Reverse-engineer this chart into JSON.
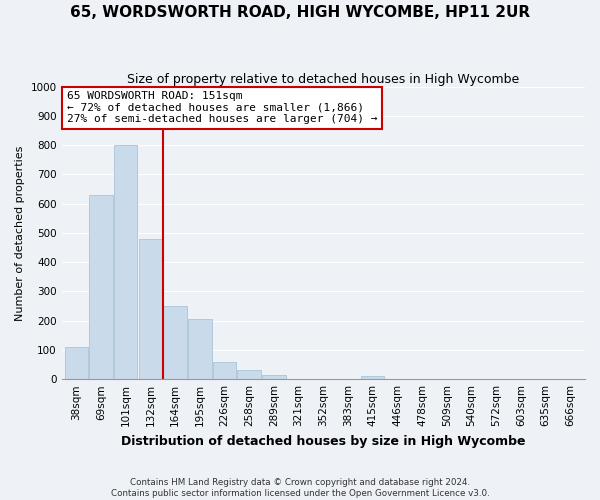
{
  "title": "65, WORDSWORTH ROAD, HIGH WYCOMBE, HP11 2UR",
  "subtitle": "Size of property relative to detached houses in High Wycombe",
  "xlabel": "Distribution of detached houses by size in High Wycombe",
  "ylabel": "Number of detached properties",
  "bar_labels": [
    "38sqm",
    "69sqm",
    "101sqm",
    "132sqm",
    "164sqm",
    "195sqm",
    "226sqm",
    "258sqm",
    "289sqm",
    "321sqm",
    "352sqm",
    "383sqm",
    "415sqm",
    "446sqm",
    "478sqm",
    "509sqm",
    "540sqm",
    "572sqm",
    "603sqm",
    "635sqm",
    "666sqm"
  ],
  "bar_values": [
    110,
    630,
    800,
    480,
    250,
    205,
    60,
    30,
    15,
    0,
    0,
    0,
    10,
    0,
    0,
    0,
    0,
    0,
    0,
    0,
    0
  ],
  "bar_color": "#c9daea",
  "bar_edge_color": "#a8c4d8",
  "vline_color": "#cc0000",
  "vline_x_index": 3.5,
  "annotation_line1": "65 WORDSWORTH ROAD: 151sqm",
  "annotation_line2": "← 72% of detached houses are smaller (1,866)",
  "annotation_line3": "27% of semi-detached houses are larger (704) →",
  "annotation_box_color": "#ffffff",
  "annotation_box_edge": "#cc0000",
  "ylim": [
    0,
    1000
  ],
  "yticks": [
    0,
    100,
    200,
    300,
    400,
    500,
    600,
    700,
    800,
    900,
    1000
  ],
  "footnote": "Contains HM Land Registry data © Crown copyright and database right 2024.\nContains public sector information licensed under the Open Government Licence v3.0.",
  "bg_color": "#eef2f7",
  "plot_bg_color": "#eef2f7",
  "grid_color": "#ffffff",
  "title_fontsize": 11,
  "subtitle_fontsize": 9,
  "xlabel_fontsize": 9,
  "ylabel_fontsize": 8,
  "tick_fontsize": 7.5,
  "annot_fontsize": 8
}
